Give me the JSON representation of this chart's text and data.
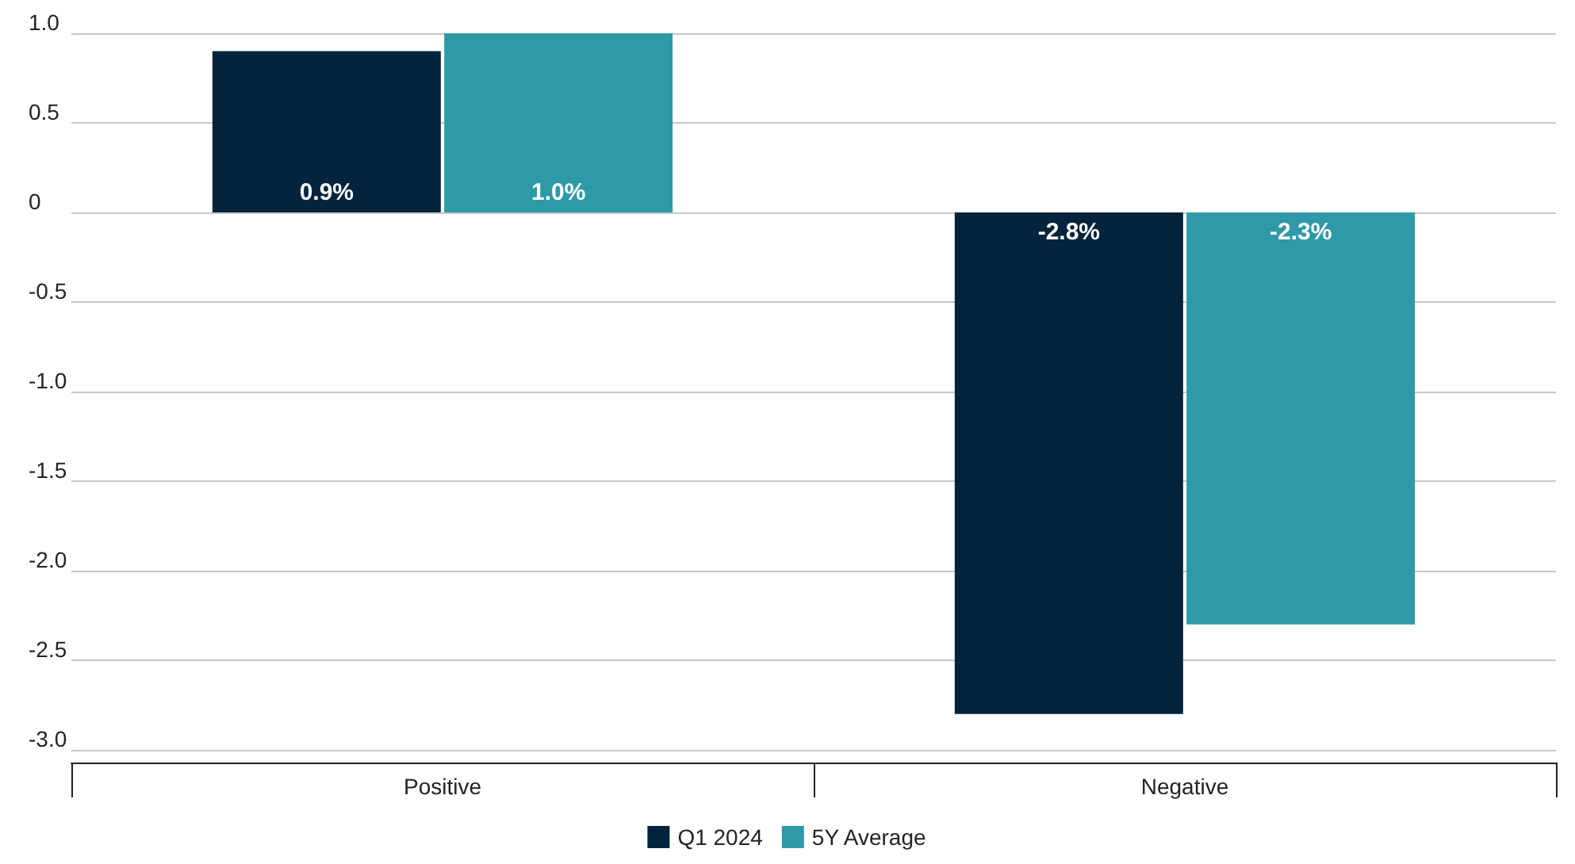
{
  "chart_data": {
    "type": "bar",
    "categories": [
      "Positive",
      "Negative"
    ],
    "series": [
      {
        "name": "Q1 2024",
        "color": "#03243c",
        "values": [
          0.9,
          -2.8
        ],
        "value_labels": [
          "0.9%",
          "-2.8%"
        ]
      },
      {
        "name": "5Y Average",
        "color": "#2e9aa8",
        "values": [
          1.0,
          -2.3
        ],
        "value_labels": [
          "1.0%",
          "-2.3%"
        ]
      }
    ],
    "ylim": [
      -3.0,
      1.0
    ],
    "yticks": [
      {
        "value": -3,
        "label": "-3.0"
      },
      -2.5,
      {
        "value": -2,
        "label": "-2.0"
      },
      -1.5,
      {
        "value": -1,
        "label": "-1.0"
      },
      -0.5,
      0,
      0.5,
      {
        "value": 1,
        "label": "1.0"
      }
    ],
    "grid": "y",
    "legend": "bottom"
  }
}
